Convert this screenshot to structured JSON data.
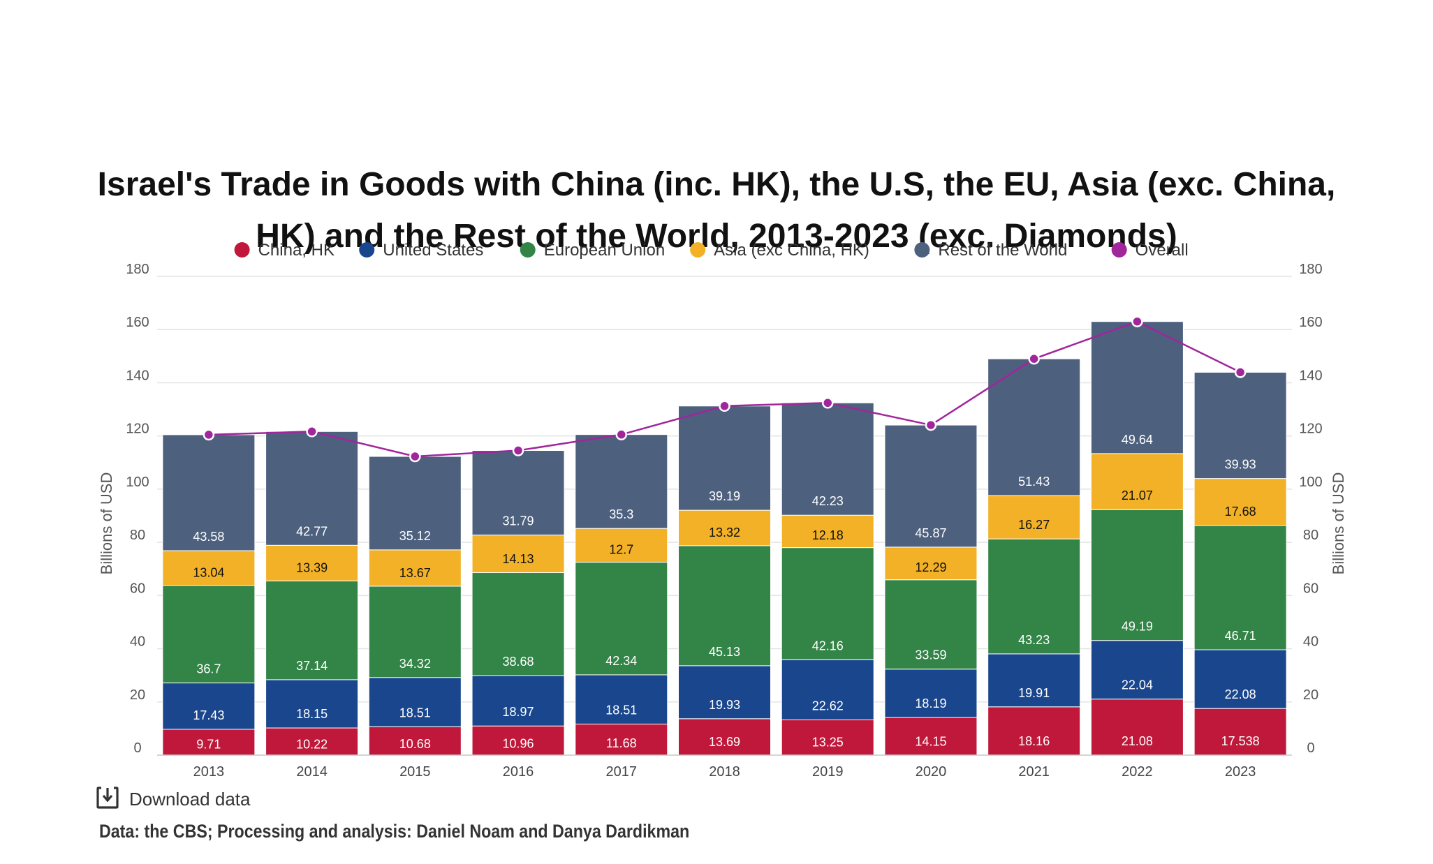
{
  "chart_data": {
    "type": "bar",
    "stacked": true,
    "title": [
      "Israel's Trade in Goods with China (inc. HK), the U.S, the EU, Asia (exc. China,",
      "HK) and the Rest of the World, 2013-2023 (exc. Diamonds)"
    ],
    "categories": [
      "2013",
      "2014",
      "2015",
      "2016",
      "2017",
      "2018",
      "2019",
      "2020",
      "2021",
      "2022",
      "2023"
    ],
    "series": [
      {
        "name": "China, HK",
        "color": "#c0183a",
        "label_color": "#ffffff",
        "values": [
          9.71,
          10.22,
          10.68,
          10.96,
          11.68,
          13.69,
          13.25,
          14.15,
          18.16,
          21.08,
          17.538
        ],
        "labels": [
          "9.71",
          "10.22",
          "10.68",
          "10.96",
          "11.68",
          "13.69",
          "13.25",
          "14.15",
          "18.16",
          "21.08",
          "17.538"
        ]
      },
      {
        "name": "United States",
        "color": "#19468d",
        "label_color": "#ffffff",
        "values": [
          17.43,
          18.15,
          18.51,
          18.97,
          18.51,
          19.93,
          22.62,
          18.19,
          19.91,
          22.04,
          22.08
        ],
        "labels": [
          "17.43",
          "18.15",
          "18.51",
          "18.97",
          "18.51",
          "19.93",
          "22.62",
          "18.19",
          "19.91",
          "22.04",
          "22.08"
        ]
      },
      {
        "name": "European Union",
        "color": "#338447",
        "label_color": "#ffffff",
        "values": [
          36.7,
          37.14,
          34.32,
          38.68,
          42.34,
          45.13,
          42.16,
          33.59,
          43.23,
          49.19,
          46.71
        ],
        "labels": [
          "36.7",
          "37.14",
          "34.32",
          "38.68",
          "42.34",
          "45.13",
          "42.16",
          "33.59",
          "43.23",
          "49.19",
          "46.71"
        ]
      },
      {
        "name": "Asia (exc China, HK)",
        "color": "#f3b127",
        "label_color": "#111111",
        "values": [
          13.04,
          13.39,
          13.67,
          14.13,
          12.7,
          13.32,
          12.18,
          12.29,
          16.27,
          21.07,
          17.68
        ],
        "labels": [
          "13.04",
          "13.39",
          "13.67",
          "14.13",
          "12.7",
          "13.32",
          "12.18",
          "12.29",
          "16.27",
          "21.07",
          "17.68"
        ]
      },
      {
        "name": "Rest of the World",
        "color": "#4d617f",
        "label_color": "#ffffff",
        "values": [
          43.58,
          42.77,
          35.12,
          31.79,
          35.3,
          39.19,
          42.23,
          45.87,
          51.43,
          49.64,
          39.93
        ],
        "labels": [
          "43.58",
          "42.77",
          "35.12",
          "31.79",
          "35.3",
          "39.19",
          "42.23",
          "45.87",
          "51.43",
          "49.64",
          "39.93"
        ]
      }
    ],
    "overall": {
      "name": "Overall",
      "type": "line",
      "color": "#a1259b",
      "values": [
        120.46,
        121.67,
        112.3,
        114.53,
        120.53,
        131.26,
        132.44,
        124.09,
        149.0,
        163.02,
        143.94
      ]
    },
    "ylabel": "Billions of USD",
    "ylabel_right": "Billions of USD",
    "ylim": [
      0,
      180
    ],
    "yticks": [
      "0",
      "20",
      "40",
      "60",
      "80",
      "100",
      "120",
      "140",
      "160",
      "180"
    ],
    "grid": true,
    "legend_position": "top-center"
  },
  "download": {
    "label": "Download data",
    "icon": "download-icon"
  },
  "source": "Data: the CBS; Processing and analysis: Daniel Noam and Danya Dardikman"
}
